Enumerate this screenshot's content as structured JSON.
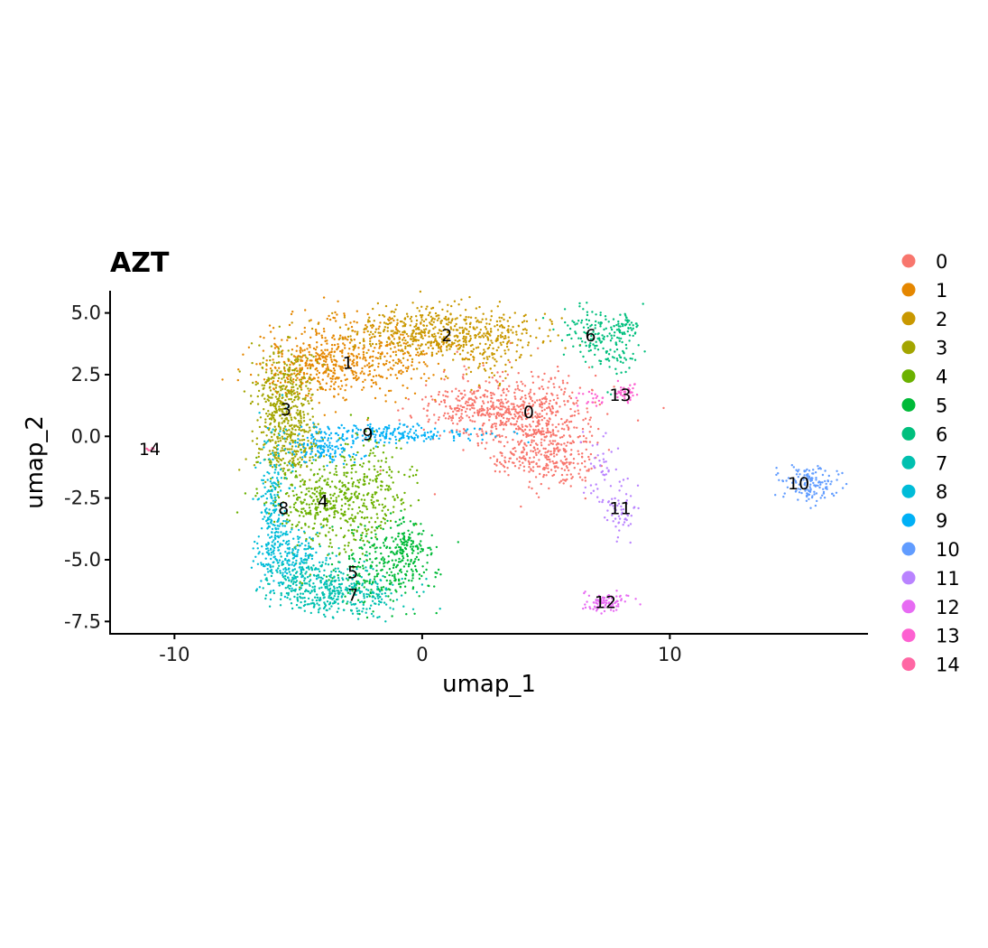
{
  "chart_data": {
    "type": "scatter",
    "title": "AZT",
    "xlabel": "umap_1",
    "ylabel": "umap_2",
    "xlim": [
      -12.6,
      18.0
    ],
    "ylim": [
      -8.0,
      5.9
    ],
    "xticks": [
      -10,
      0,
      10
    ],
    "xtick_labels": [
      "-10",
      "0",
      "10"
    ],
    "yticks": [
      -7.5,
      -5.0,
      -2.5,
      0.0,
      2.5,
      5.0
    ],
    "ytick_labels": [
      "-7.5",
      "-5.0",
      "-2.5",
      "0.0",
      "2.5",
      "5.0"
    ],
    "grid": false,
    "legend_position": "right",
    "clusters": [
      {
        "name": "0",
        "color": "#F8766D",
        "label_x": 4.3,
        "label_y": 1.0
      },
      {
        "name": "1",
        "color": "#E58700",
        "label_x": -3.0,
        "label_y": 3.0
      },
      {
        "name": "2",
        "color": "#C99800",
        "label_x": 1.0,
        "label_y": 4.1
      },
      {
        "name": "3",
        "color": "#A3A500",
        "label_x": -5.5,
        "label_y": 1.1
      },
      {
        "name": "4",
        "color": "#6BB100",
        "label_x": -4.0,
        "label_y": -2.6
      },
      {
        "name": "5",
        "color": "#00BA38",
        "label_x": -2.8,
        "label_y": -5.5
      },
      {
        "name": "6",
        "color": "#00BF7D",
        "label_x": 6.8,
        "label_y": 4.1
      },
      {
        "name": "7",
        "color": "#00C0AF",
        "label_x": -2.8,
        "label_y": -6.4
      },
      {
        "name": "8",
        "color": "#00BCD8",
        "label_x": -5.6,
        "label_y": -2.9
      },
      {
        "name": "9",
        "color": "#00B0F6",
        "label_x": -2.2,
        "label_y": 0.1
      },
      {
        "name": "10",
        "color": "#619CFF",
        "label_x": 15.2,
        "label_y": -1.9
      },
      {
        "name": "11",
        "color": "#B983FF",
        "label_x": 8.0,
        "label_y": -2.9
      },
      {
        "name": "12",
        "color": "#E76BF3",
        "label_x": 7.4,
        "label_y": -6.7
      },
      {
        "name": "13",
        "color": "#FD61D1",
        "label_x": 8.0,
        "label_y": 1.7
      },
      {
        "name": "14",
        "color": "#FF67A4",
        "label_x": -11.0,
        "label_y": -0.5
      }
    ]
  }
}
